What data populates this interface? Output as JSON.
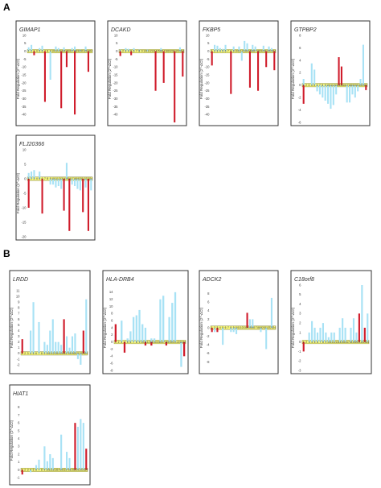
{
  "figure": {
    "panel_labels": [
      "A",
      "B"
    ]
  },
  "colors": {
    "light_bar": "#a8e2f5",
    "dark_bar": "#d01c2b",
    "band_fill": "#f3f37a",
    "band_border": "#7a7a30",
    "frame": "#333333"
  },
  "chart_data": [
    {
      "type": "bar",
      "panel": "A",
      "title": "GIMAP1",
      "ylabel": "Fold Regulation (2^-ΔCt)",
      "ylim": [
        -45,
        10
      ],
      "yticks": [
        -40,
        -35,
        -30,
        -25,
        -20,
        -15,
        -10,
        -5,
        0,
        5,
        10
      ],
      "x": [
        1,
        2,
        3,
        4,
        5,
        6,
        7,
        8,
        9,
        10,
        11,
        12,
        13,
        14,
        15,
        16,
        17,
        18,
        19,
        20,
        21,
        22,
        23,
        24
      ],
      "series": [
        {
          "color": "light",
          "values": [
            2.5,
            4,
            0,
            0,
            2,
            3.5,
            0,
            0,
            -18,
            0,
            3,
            2,
            0,
            2.5,
            0,
            0,
            2,
            3,
            0,
            1,
            0,
            3,
            0,
            0
          ]
        },
        {
          "color": "dark",
          "values": [
            0,
            0,
            -2.5,
            0,
            0,
            0,
            -32,
            0,
            0,
            0,
            0,
            0,
            -36,
            0,
            -10,
            0,
            0,
            -40,
            0,
            0,
            0,
            0,
            -13,
            0
          ]
        }
      ]
    },
    {
      "type": "bar",
      "panel": "A",
      "title": "DCAKD",
      "ylabel": "Fold Regulation (2^-ΔCt)",
      "ylim": [
        -45,
        10
      ],
      "yticks": [
        -40,
        -35,
        -30,
        -25,
        -20,
        -15,
        -10,
        -5,
        0,
        5,
        10
      ],
      "x": [
        1,
        2,
        3,
        4,
        5,
        6,
        7,
        8,
        9,
        10,
        11,
        12,
        13,
        14,
        15,
        16,
        17,
        18,
        19,
        20,
        21,
        22,
        23,
        24
      ],
      "series": [
        {
          "color": "light",
          "values": [
            1,
            0,
            2,
            1.5,
            0,
            2,
            0,
            1,
            0,
            0,
            1,
            0,
            0,
            0,
            0,
            2,
            0,
            0,
            0,
            0,
            0,
            0,
            2.5,
            0
          ]
        },
        {
          "color": "dark",
          "values": [
            -3,
            0,
            0,
            0,
            -2.5,
            0,
            0,
            0,
            0,
            0,
            0,
            0,
            0,
            -25,
            0,
            0,
            -20,
            0,
            0,
            0,
            -45,
            0,
            0,
            -16
          ]
        }
      ]
    },
    {
      "type": "bar",
      "panel": "A",
      "title": "FKBP5",
      "ylabel": "Fold Regulation (2^-ΔCt)",
      "ylim": [
        -45,
        10
      ],
      "yticks": [
        -40,
        -35,
        -30,
        -25,
        -20,
        -15,
        -10,
        -5,
        0,
        5,
        10
      ],
      "x": [
        1,
        2,
        3,
        4,
        5,
        6,
        7,
        8,
        9,
        10,
        11,
        12,
        13,
        14,
        15,
        16,
        17,
        18,
        19,
        20,
        21,
        22,
        23,
        24
      ],
      "series": [
        {
          "color": "light",
          "values": [
            0,
            4,
            3.5,
            2,
            1.5,
            4,
            0,
            0,
            3,
            0,
            3,
            -6,
            6.5,
            5,
            0,
            4,
            3,
            0,
            0,
            3.5,
            0,
            3,
            2,
            0
          ]
        },
        {
          "color": "dark",
          "values": [
            -9,
            0,
            0,
            0,
            0,
            0,
            0,
            -27,
            0,
            0,
            0,
            0,
            0,
            0,
            -23,
            0,
            0,
            -25,
            0,
            0,
            -10,
            0,
            0,
            -12
          ]
        }
      ]
    },
    {
      "type": "bar",
      "panel": "A",
      "title": "GTPBP2",
      "ylabel": "Fold Regulation (2^-ΔCt)",
      "ylim": [
        -6,
        8
      ],
      "yticks": [
        -6,
        -4,
        -2,
        0,
        2,
        4,
        6,
        8
      ],
      "x": [
        1,
        2,
        3,
        4,
        5,
        6,
        7,
        8,
        9,
        10,
        11,
        12,
        13,
        14,
        15,
        16,
        17,
        18,
        19,
        20,
        21,
        22,
        23,
        24
      ],
      "series": [
        {
          "color": "light",
          "values": [
            1,
            0,
            0,
            3.5,
            2.5,
            -1,
            -1.5,
            -2,
            -2.5,
            -3,
            -3.8,
            -3.2,
            -1.5,
            0,
            0,
            0,
            -2.8,
            -2.8,
            -1.5,
            -2,
            -1,
            1,
            6.5,
            0
          ]
        },
        {
          "color": "dark",
          "values": [
            -3,
            0,
            0,
            0,
            0,
            0,
            0,
            0,
            0,
            0,
            0,
            0,
            0,
            4.5,
            3,
            0,
            0,
            0,
            0,
            0,
            0,
            0,
            0,
            -0.8
          ]
        }
      ]
    },
    {
      "type": "bar",
      "panel": "A",
      "title": "FLJ20366",
      "ylabel": "Fold Regulation (2^-ΔCt)",
      "ylim": [
        -20,
        10
      ],
      "yticks": [
        -20,
        -15,
        -10,
        -5,
        0,
        5,
        10
      ],
      "x": [
        1,
        2,
        3,
        4,
        5,
        6,
        7,
        8,
        9,
        10,
        11,
        12,
        13,
        14,
        15,
        16,
        17,
        18,
        19,
        20,
        21,
        22,
        23,
        24
      ],
      "series": [
        {
          "color": "light",
          "values": [
            2,
            2.5,
            3,
            0,
            2.5,
            0,
            0,
            0,
            -2,
            -2,
            -3,
            -2.5,
            -3.5,
            0,
            5.5,
            0,
            -2,
            -2.5,
            -3.5,
            -4,
            0,
            -3,
            0,
            -4
          ]
        },
        {
          "color": "dark",
          "values": [
            -10,
            0,
            0,
            0,
            0,
            -12,
            0,
            0,
            0,
            0,
            0,
            0,
            0,
            -11,
            0,
            -18,
            0,
            0,
            0,
            0,
            -11.5,
            0,
            -18,
            0
          ]
        }
      ]
    },
    {
      "type": "bar",
      "panel": "B",
      "title": "LRDD",
      "ylabel": "Fold Regulation (2^-ΔCt)",
      "ylim": [
        -3,
        12
      ],
      "yticks": [
        -2,
        -1,
        0,
        1,
        2,
        3,
        4,
        5,
        6,
        7,
        8,
        9,
        10,
        11
      ],
      "x": [
        1,
        2,
        3,
        4,
        5,
        6,
        7,
        8,
        9,
        10,
        11,
        12,
        13,
        14,
        15,
        16,
        17,
        18,
        19,
        20,
        21,
        22,
        23,
        24
      ],
      "series": [
        {
          "color": "light",
          "values": [
            0,
            0,
            0,
            4,
            9,
            0,
            5.5,
            0,
            2,
            1.5,
            4,
            6,
            2,
            2,
            1.5,
            0,
            3,
            1,
            3,
            3.5,
            -1,
            -2,
            0,
            9.5
          ]
        },
        {
          "color": "dark",
          "values": [
            2.5,
            0,
            0,
            0,
            0,
            0,
            0,
            0,
            0,
            0,
            0,
            0,
            0,
            0,
            0,
            6,
            0,
            0,
            0,
            0,
            0,
            0,
            4,
            0
          ]
        }
      ]
    },
    {
      "type": "bar",
      "panel": "B",
      "title": "HLA-DRB4",
      "ylabel": "Fold Regulation (2^-ΔCt)",
      "ylim": [
        -8,
        16
      ],
      "yticks": [
        -8,
        -6,
        -4,
        -2,
        0,
        2,
        4,
        6,
        8,
        10,
        12,
        14
      ],
      "x": [
        1,
        2,
        3,
        4,
        5,
        6,
        7,
        8,
        9,
        10,
        11,
        12,
        13,
        14,
        15,
        16,
        17,
        18,
        19,
        20,
        21,
        22,
        23,
        24
      ],
      "series": [
        {
          "color": "light",
          "values": [
            2,
            0,
            6,
            0,
            1,
            3,
            7,
            7.5,
            9,
            5,
            4,
            0,
            1,
            1,
            0,
            12,
            13,
            0,
            7,
            11,
            14,
            0,
            -7,
            0
          ]
        },
        {
          "color": "dark",
          "values": [
            5,
            0,
            0,
            -3,
            0,
            0,
            0,
            0,
            0,
            0,
            -1,
            0,
            -1,
            0,
            0,
            0,
            0,
            -1,
            0,
            0,
            0,
            0,
            0,
            -4
          ]
        }
      ]
    },
    {
      "type": "bar",
      "panel": "B",
      "title": "ADCK2",
      "ylabel": "Fold Regulation (2^-ΔCt)",
      "ylim": [
        -10,
        10
      ],
      "yticks": [
        -8,
        -6,
        -4,
        -2,
        0,
        2,
        4,
        6,
        8
      ],
      "x": [
        1,
        2,
        3,
        4,
        5,
        6,
        7,
        8,
        9,
        10,
        11,
        12,
        13,
        14,
        15,
        16,
        17,
        18,
        19,
        20,
        21,
        22,
        23,
        24
      ],
      "series": [
        {
          "color": "light",
          "values": [
            0,
            -1,
            0,
            0,
            -4,
            0,
            0,
            -1,
            -1,
            -1.5,
            0,
            0,
            0,
            0,
            2,
            2,
            0,
            0,
            -1,
            0,
            -5,
            0,
            7,
            0
          ]
        },
        {
          "color": "dark",
          "values": [
            -1,
            0,
            -1,
            0,
            0,
            0,
            0,
            0,
            0,
            0,
            0,
            0,
            0,
            3.5,
            0,
            0,
            0,
            0,
            0,
            0,
            0,
            0,
            0,
            0
          ]
        }
      ]
    },
    {
      "type": "bar",
      "panel": "B",
      "title": "C18orf8",
      "ylabel": "Fold Regulation (2^-ΔCt)",
      "ylim": [
        -3,
        6
      ],
      "yticks": [
        -3,
        -2,
        -1,
        0,
        1,
        2,
        3,
        4,
        5,
        6
      ],
      "x": [
        1,
        2,
        3,
        4,
        5,
        6,
        7,
        8,
        9,
        10,
        11,
        12,
        13,
        14,
        15,
        16,
        17,
        18,
        19,
        20,
        21,
        22,
        23,
        24
      ],
      "series": [
        {
          "color": "light",
          "values": [
            0,
            0,
            1,
            2.2,
            1.5,
            1,
            1.5,
            2,
            1,
            0.5,
            1,
            1,
            0,
            1.5,
            2.5,
            1.5,
            0,
            1.5,
            2.5,
            1,
            0,
            6.5,
            0,
            3
          ]
        },
        {
          "color": "dark",
          "values": [
            -1,
            0,
            0,
            0,
            0,
            0,
            0,
            0,
            0,
            0,
            0,
            0,
            0,
            0,
            0,
            0,
            0,
            0,
            0,
            0,
            3,
            0,
            1.5,
            0
          ]
        }
      ]
    },
    {
      "type": "bar",
      "panel": "B",
      "title": "HIAT1",
      "ylabel": "Fold Regulation (2^-ΔCt)",
      "ylim": [
        -1.5,
        9
      ],
      "yticks": [
        -1,
        0,
        1,
        2,
        3,
        4,
        5,
        6,
        7,
        8
      ],
      "x": [
        1,
        2,
        3,
        4,
        5,
        6,
        7,
        8,
        9,
        10,
        11,
        12,
        13,
        14,
        15,
        16,
        17,
        18,
        19,
        20,
        21,
        22,
        23,
        24
      ],
      "series": [
        {
          "color": "light",
          "values": [
            0,
            0,
            0,
            -0.3,
            0,
            0.6,
            1.3,
            0,
            3,
            1.1,
            2,
            1.5,
            0,
            0,
            4.5,
            0,
            2.3,
            1.5,
            0,
            0,
            5.5,
            6.5,
            6,
            0
          ]
        },
        {
          "color": "dark",
          "values": [
            -0.6,
            0,
            0,
            0,
            0,
            0,
            0,
            0,
            0,
            0,
            0,
            0,
            0,
            0,
            0,
            0,
            0,
            0,
            0,
            6,
            0,
            0,
            0,
            2.7
          ]
        }
      ]
    }
  ]
}
